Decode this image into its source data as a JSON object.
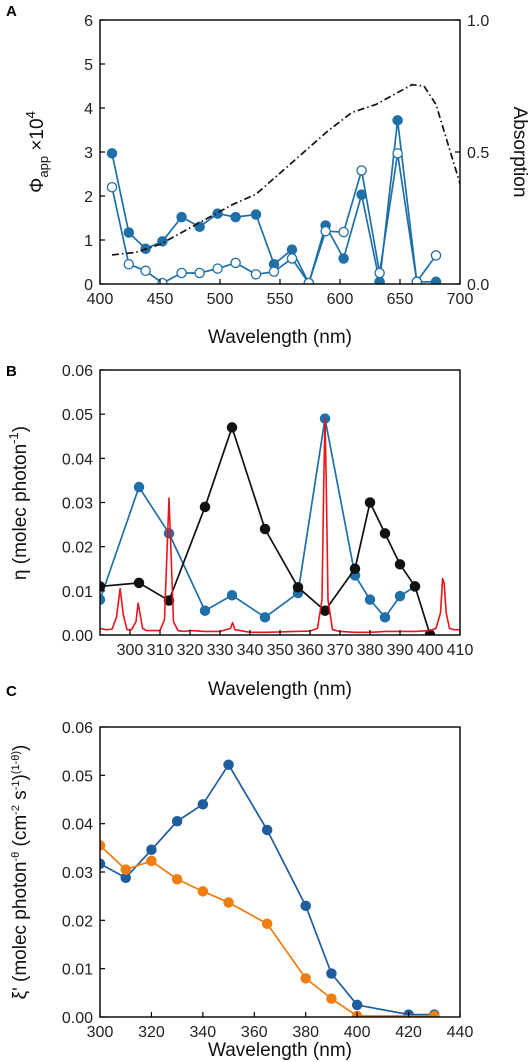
{
  "chart_data": [
    {
      "panel": "A",
      "type": "line",
      "xlabel": "Wavelength (nm)",
      "ylabel_main": "Φ",
      "ylabel_sub": "app",
      "ylabel_rest": " ×10",
      "ylabel_sup": "4",
      "y2label": "Absorption",
      "xlim": [
        400,
        700
      ],
      "ylim": [
        0,
        6
      ],
      "y2lim": [
        0,
        1.0
      ],
      "xticks": [
        "400",
        "450",
        "500",
        "550",
        "600",
        "650",
        "700"
      ],
      "yticks": [
        "0",
        "1",
        "2",
        "3",
        "4",
        "5",
        "6"
      ],
      "y2ticks": [
        "0.0",
        "0.5",
        "1.0"
      ],
      "series": [
        {
          "color": "#1f6fa8",
          "marker": "filled",
          "x": [
            410,
            424,
            438,
            452,
            468,
            483,
            498,
            513,
            530,
            545,
            560,
            574,
            588,
            603,
            618,
            633,
            648,
            664,
            680
          ],
          "y": [
            2.97,
            1.17,
            0.8,
            0.97,
            1.52,
            1.3,
            1.6,
            1.52,
            1.58,
            0.45,
            0.78,
            0.02,
            1.33,
            0.58,
            2.03,
            0.05,
            3.72,
            0.05,
            0.05
          ]
        },
        {
          "color": "#1f6fa8",
          "marker": "open",
          "x": [
            410,
            424,
            438,
            452,
            468,
            483,
            498,
            513,
            530,
            545,
            560,
            574,
            588,
            603,
            618,
            633,
            648,
            664,
            680
          ],
          "y": [
            2.2,
            0.45,
            0.3,
            0.02,
            0.25,
            0.25,
            0.35,
            0.48,
            0.22,
            0.28,
            0.58,
            0.02,
            1.2,
            1.18,
            2.58,
            0.25,
            2.97,
            0.05,
            0.65
          ]
        },
        {
          "color": "#111111",
          "dash": "dashdot",
          "axis": "right",
          "x": [
            410,
            430,
            450,
            470,
            490,
            510,
            530,
            550,
            570,
            590,
            610,
            630,
            650,
            660,
            670,
            680,
            690,
            700
          ],
          "y": [
            0.11,
            0.12,
            0.15,
            0.2,
            0.25,
            0.3,
            0.34,
            0.42,
            0.5,
            0.58,
            0.65,
            0.68,
            0.73,
            0.755,
            0.75,
            0.68,
            0.53,
            0.38
          ]
        }
      ]
    },
    {
      "panel": "B",
      "type": "line",
      "xlabel": "Wavelength (nm)",
      "ylabel_main": "η (molec photon",
      "ylabel_sup": "-1",
      "ylabel_rest": ")",
      "xlim": [
        290,
        410
      ],
      "ylim": [
        0,
        0.06
      ],
      "xticks": [
        "300",
        "310",
        "320",
        "330",
        "340",
        "350",
        "360",
        "370",
        "380",
        "390",
        "400",
        "410"
      ],
      "yticks": [
        "0.00",
        "0.01",
        "0.02",
        "0.03",
        "0.04",
        "0.05",
        "0.06"
      ],
      "series": [
        {
          "color": "#1f6fa8",
          "marker": "filled",
          "x": [
            290,
            303,
            313,
            325,
            334,
            345,
            356,
            365,
            375,
            380,
            385,
            390,
            395
          ],
          "y": [
            0.008,
            0.0335,
            0.023,
            0.0055,
            0.009,
            0.004,
            0.0095,
            0.049,
            0.0135,
            0.008,
            0.004,
            0.0088,
            0.011
          ]
        },
        {
          "color": "#111111",
          "marker": "filled",
          "x": [
            290,
            303,
            313,
            325,
            334,
            345,
            356,
            365,
            375,
            380,
            385,
            390,
            395,
            400
          ],
          "y": [
            0.011,
            0.0118,
            0.0078,
            0.029,
            0.047,
            0.024,
            0.0108,
            0.0055,
            0.015,
            0.03,
            0.023,
            0.016,
            0.011,
            0.0001
          ]
        },
        {
          "color": "#e8161b",
          "line": "spectrum",
          "x": [
            290,
            292,
            294,
            295.5,
            296.7,
            297.8,
            299,
            300.5,
            302,
            302.7,
            303.3,
            304.2,
            305.5,
            308,
            310,
            311.5,
            312.4,
            313,
            313.6,
            314.5,
            316,
            318,
            320,
            325,
            330,
            333.5,
            334.2,
            335,
            340,
            345,
            350,
            355,
            360,
            362.5,
            364,
            364.6,
            365,
            365.4,
            366,
            367.5,
            370,
            375,
            380,
            385,
            390,
            395,
            400,
            402,
            403.5,
            404.2,
            404.7,
            405.4,
            406.5,
            408,
            410
          ],
          "y": [
            0.0015,
            0.0012,
            0.0013,
            0.004,
            0.0105,
            0.0045,
            0.0012,
            0.0012,
            0.003,
            0.0072,
            0.005,
            0.0015,
            0.001,
            0.001,
            0.001,
            0.0035,
            0.02,
            0.031,
            0.02,
            0.003,
            0.001,
            0.0008,
            0.001,
            0.0008,
            0.0008,
            0.0015,
            0.0028,
            0.0012,
            0.0006,
            0.0006,
            0.0007,
            0.0008,
            0.0009,
            0.0015,
            0.008,
            0.035,
            0.049,
            0.035,
            0.008,
            0.0012,
            0.0008,
            0.0006,
            0.0006,
            0.0008,
            0.0008,
            0.0008,
            0.001,
            0.0015,
            0.005,
            0.0128,
            0.0118,
            0.005,
            0.0015,
            0.0012,
            0.0012
          ]
        }
      ]
    },
    {
      "panel": "C",
      "type": "line",
      "xlabel": "Wavelength (nm)",
      "ylabel_main": "ξ' (molec photon",
      "ylabel_sup": "-θ",
      "ylabel_mid": " (cm",
      "ylabel_sup2": "-2",
      "ylabel_mid2": " s",
      "ylabel_sup3": "-1",
      "ylabel_close": ")",
      "ylabel_sup4": "(1-θ)",
      "ylabel_end": ")",
      "xlim": [
        300,
        440
      ],
      "ylim": [
        0,
        0.06
      ],
      "xticks": [
        "300",
        "320",
        "340",
        "360",
        "380",
        "400",
        "420",
        "440"
      ],
      "yticks": [
        "0.00",
        "0.01",
        "0.02",
        "0.03",
        "0.04",
        "0.05",
        "0.06"
      ],
      "series": [
        {
          "color": "#1f5d9e",
          "marker": "filled",
          "x": [
            300,
            310,
            320,
            330,
            340,
            350,
            365,
            380,
            390,
            400,
            420,
            430
          ],
          "y": [
            0.0317,
            0.0288,
            0.0346,
            0.0405,
            0.044,
            0.0522,
            0.0387,
            0.023,
            0.009,
            0.0025,
            0.0005,
            0.0005
          ]
        },
        {
          "color": "#f07d10",
          "marker": "filled",
          "x": [
            300,
            310,
            320,
            330,
            340,
            350,
            365,
            380,
            390,
            400,
            430
          ],
          "y": [
            0.0355,
            0.0305,
            0.0323,
            0.0285,
            0.026,
            0.0237,
            0.0193,
            0.008,
            0.0038,
            0.0002,
            0.0002
          ]
        }
      ]
    }
  ]
}
